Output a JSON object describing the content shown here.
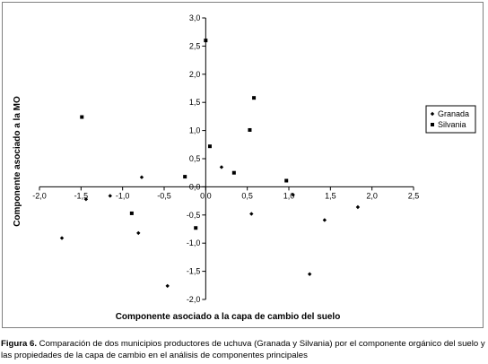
{
  "chart_data": {
    "type": "scatter",
    "title": "",
    "xlabel": "Componente asociado a la capa de cambio del suelo",
    "ylabel": "Componente asociado a la MO",
    "xlim": [
      -2.0,
      2.5
    ],
    "ylim": [
      -2.0,
      3.0
    ],
    "xticks": [
      "-2,0",
      "-1,5",
      "-1,0",
      "-0,5",
      "0,0",
      "0,5",
      "1,0",
      "1,5",
      "2,0",
      "2,5"
    ],
    "yticks": [
      "3,0",
      "2,5",
      "2,0",
      "1,5",
      "1,0",
      "0,5",
      "0,0",
      "-0,5",
      "-1,0",
      "-1,5",
      "-2,0"
    ],
    "grid": false,
    "legend_position": "right",
    "series": [
      {
        "name": "Granada",
        "marker": "diamond",
        "color": "#000000",
        "points": [
          {
            "x": -1.44,
            "y": -0.22
          },
          {
            "x": -1.15,
            "y": -0.16
          },
          {
            "x": -0.77,
            "y": 0.17
          },
          {
            "x": -1.73,
            "y": -0.91
          },
          {
            "x": -0.81,
            "y": -0.82
          },
          {
            "x": -0.46,
            "y": -1.76
          },
          {
            "x": 0.19,
            "y": 0.35
          },
          {
            "x": 0.55,
            "y": -0.48
          },
          {
            "x": 1.05,
            "y": -0.14
          },
          {
            "x": 1.25,
            "y": -1.55
          },
          {
            "x": 1.43,
            "y": -0.59
          },
          {
            "x": 1.83,
            "y": -0.36
          }
        ]
      },
      {
        "name": "Silvania",
        "marker": "square",
        "color": "#000000",
        "points": [
          {
            "x": -1.49,
            "y": 1.24
          },
          {
            "x": -0.89,
            "y": -0.47
          },
          {
            "x": -0.25,
            "y": 0.18
          },
          {
            "x": -0.12,
            "y": -0.73
          },
          {
            "x": 0.0,
            "y": 2.6
          },
          {
            "x": 0.05,
            "y": 0.72
          },
          {
            "x": 0.34,
            "y": 0.25
          },
          {
            "x": 0.53,
            "y": 1.01
          },
          {
            "x": 0.58,
            "y": 1.58
          },
          {
            "x": 0.97,
            "y": 0.11
          }
        ]
      }
    ]
  },
  "caption": {
    "label": "Figura 6.",
    "text": "Comparación de dos municipios productores de uchuva (Granada y Silvania) por el componente orgánico del suelo y las propiedades de la capa de cambio en el análisis de componentes principales"
  }
}
